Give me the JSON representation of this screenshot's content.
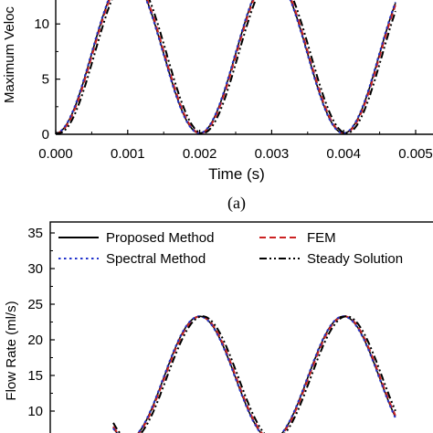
{
  "chart_data": [
    {
      "type": "line",
      "panel_label": "(a)",
      "xlabel": "Time (s)",
      "ylabel": "Maximum Veloc",
      "xlim": [
        0.0,
        0.005
      ],
      "ylim": [
        0,
        13
      ],
      "x_ticks": [
        "0.000",
        "0.001",
        "0.002",
        "0.003",
        "0.004",
        "0.005"
      ],
      "y_ticks": [
        "0",
        "5",
        "10"
      ],
      "period_s": 0.002,
      "series": [
        {
          "style": "solid",
          "color": "#000000",
          "x": [
            0.0,
            0.0005,
            0.001,
            0.0015,
            0.002,
            0.0025,
            0.003,
            0.0035,
            0.004,
            0.0045
          ],
          "y": [
            0.1,
            7.5,
            14.5,
            7.5,
            0.1,
            7.5,
            14.5,
            7.5,
            0.1,
            7.5
          ]
        },
        {
          "style": "dash",
          "color": "#cc2222",
          "x": [
            0.0,
            0.0005,
            0.001,
            0.0015,
            0.002,
            0.0025,
            0.003,
            0.0035,
            0.004,
            0.0045
          ],
          "y": [
            0.1,
            7.4,
            14.5,
            7.6,
            0.1,
            7.4,
            14.5,
            7.6,
            0.1,
            7.4
          ]
        },
        {
          "style": "dot",
          "color": "#2233cc",
          "x": [
            0.0,
            0.0005,
            0.001,
            0.0015,
            0.002,
            0.0025,
            0.003,
            0.0035,
            0.004,
            0.0045
          ],
          "y": [
            0.1,
            7.5,
            14.5,
            7.5,
            0.1,
            7.5,
            14.5,
            7.5,
            0.1,
            7.5
          ]
        },
        {
          "style": "dashdotdot",
          "color": "#000000",
          "x": [
            0.0,
            0.0005,
            0.001,
            0.0015,
            0.002,
            0.0025,
            0.003,
            0.0035,
            0.004,
            0.0045
          ],
          "y": [
            0.1,
            7.0,
            14.5,
            8.0,
            0.1,
            7.0,
            14.5,
            8.0,
            0.1,
            7.0
          ]
        }
      ]
    },
    {
      "type": "line",
      "ylabel": "Flow Rate (ml/s)",
      "ylim": [
        7,
        36
      ],
      "y_ticks": [
        "10",
        "15",
        "20",
        "25",
        "30",
        "35"
      ],
      "legend": {
        "position": "top",
        "entries": [
          {
            "label": "Proposed Method",
            "style": "solid",
            "color": "#000000"
          },
          {
            "label": "FEM",
            "style": "dash",
            "color": "#cc2222"
          },
          {
            "label": "Spectral Method",
            "style": "dot",
            "color": "#2233cc"
          },
          {
            "label": "Steady Solution",
            "style": "dashdotdot",
            "color": "#000000"
          }
        ]
      },
      "period_s": 0.002,
      "peak_value": 23.3,
      "series": [
        {
          "name": "Proposed Method",
          "style": "solid",
          "color": "#000000",
          "x": [
            0.0008,
            0.0012,
            0.0016,
            0.002,
            0.0024,
            0.0028,
            0.0032,
            0.0036,
            0.004,
            0.0044,
            0.0047
          ],
          "y": [
            7.0,
            16.5,
            22.0,
            23.3,
            22.0,
            16.5,
            7.0,
            16.5,
            22.0,
            23.3,
            22.0
          ]
        },
        {
          "name": "FEM",
          "style": "dash",
          "color": "#cc2222",
          "x": [
            0.0008,
            0.0012,
            0.0016,
            0.002,
            0.0024,
            0.0028,
            0.0032,
            0.0036,
            0.004,
            0.0044,
            0.0047
          ],
          "y": [
            7.0,
            16.4,
            22.0,
            23.3,
            22.1,
            16.6,
            7.0,
            16.4,
            22.0,
            23.3,
            22.1
          ]
        },
        {
          "name": "Spectral Method",
          "style": "dot",
          "color": "#2233cc",
          "x": [
            0.0008,
            0.0012,
            0.0016,
            0.002,
            0.0024,
            0.0028,
            0.0032,
            0.0036,
            0.004,
            0.0044,
            0.0047
          ],
          "y": [
            7.0,
            16.5,
            22.0,
            23.3,
            22.0,
            16.5,
            7.0,
            16.5,
            22.0,
            23.3,
            22.0
          ]
        },
        {
          "name": "Steady Solution",
          "style": "dashdotdot",
          "color": "#000000",
          "x": [
            0.0008,
            0.0012,
            0.0016,
            0.002,
            0.0024,
            0.0028,
            0.0032,
            0.0036,
            0.004,
            0.0044,
            0.0047
          ],
          "y": [
            7.0,
            17.0,
            22.4,
            23.5,
            21.6,
            16.0,
            7.0,
            17.0,
            22.4,
            23.5,
            21.6
          ]
        }
      ]
    }
  ]
}
